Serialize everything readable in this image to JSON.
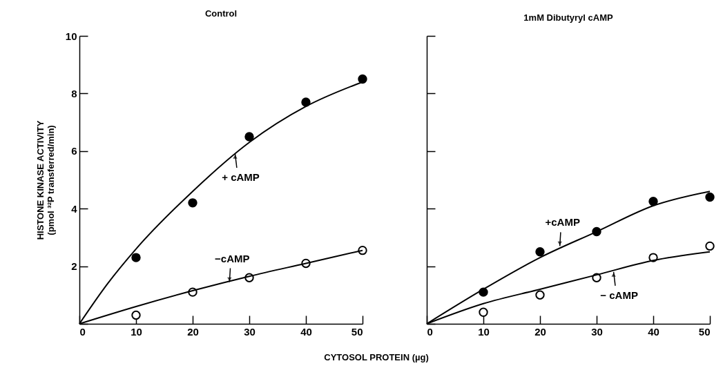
{
  "chart_data": [
    {
      "type": "scatter",
      "title": "Control",
      "xlabel": "CYTOSOL PROTEIN (µg)",
      "ylabel": [
        "HISTONE KINASE ACTIVITY",
        "(pmol ³²P transferred/min)"
      ],
      "xlim": [
        0,
        50
      ],
      "xticks": [
        0,
        10,
        20,
        30,
        40,
        50
      ],
      "ylim": [
        0,
        10
      ],
      "yticks": [
        {
          "value": 0,
          "label": null
        },
        2,
        4,
        6,
        8,
        10
      ],
      "marker": "circle",
      "grid": false,
      "series": [
        {
          "x": [
            10,
            20,
            30,
            40,
            50
          ],
          "values": [
            2.3,
            4.2,
            6.5,
            7.7,
            8.5
          ],
          "color": "#000000"
        },
        {
          "x": [
            10,
            20,
            30,
            40,
            50
          ],
          "values": [
            0.3,
            1.1,
            1.6,
            2.1,
            2.55
          ],
          "color": "#ffffff"
        },
        {
          "type": "line",
          "marker": "none",
          "x": [
            0,
            5,
            10,
            20,
            30,
            40,
            50
          ],
          "values": [
            0,
            1.4,
            2.6,
            4.6,
            6.3,
            7.55,
            8.4
          ],
          "color": "#000000"
        },
        {
          "type": "line",
          "marker": "none",
          "x": [
            0,
            10,
            20,
            30,
            40,
            50
          ],
          "values": [
            0,
            0.6,
            1.15,
            1.65,
            2.1,
            2.55
          ],
          "color": "#000000"
        }
      ],
      "annotations": [
        {
          "text": "+ cAMP",
          "x": 27.5,
          "y": 5.9
        },
        {
          "text": "−cAMP",
          "x": 26.5,
          "y": 1.45
        }
      ]
    },
    {
      "type": "scatter",
      "title": "1mM Dibutyryl cAMP",
      "xlim": [
        0,
        50
      ],
      "xticks": [
        0,
        10,
        20,
        30,
        40,
        50
      ],
      "ylim": [
        0,
        10
      ],
      "yticks": [
        0,
        2,
        4,
        6,
        8,
        10
      ],
      "tick_labels": "x",
      "marker": "circle",
      "grid": false,
      "series": [
        {
          "x": [
            10,
            20,
            30,
            40,
            50
          ],
          "values": [
            1.1,
            2.5,
            3.2,
            4.25,
            4.4
          ],
          "color": "#000000"
        },
        {
          "x": [
            10,
            20,
            30,
            40,
            50
          ],
          "values": [
            0.4,
            1.0,
            1.6,
            2.3,
            2.7
          ],
          "color": "#ffffff"
        },
        {
          "type": "line",
          "marker": "none",
          "x": [
            0,
            10,
            20,
            30,
            40,
            50
          ],
          "values": [
            0,
            1.2,
            2.3,
            3.2,
            4.1,
            4.6
          ],
          "color": "#000000"
        },
        {
          "type": "line",
          "marker": "none",
          "x": [
            0,
            10,
            20,
            30,
            40,
            50
          ],
          "values": [
            0,
            0.7,
            1.2,
            1.7,
            2.2,
            2.5
          ],
          "color": "#000000"
        }
      ],
      "annotations": [
        {
          "text": "+cAMP",
          "x": 23.5,
          "y": 2.7
        },
        {
          "text": "− cAMP",
          "x": 33,
          "y": 1.8
        }
      ]
    }
  ]
}
